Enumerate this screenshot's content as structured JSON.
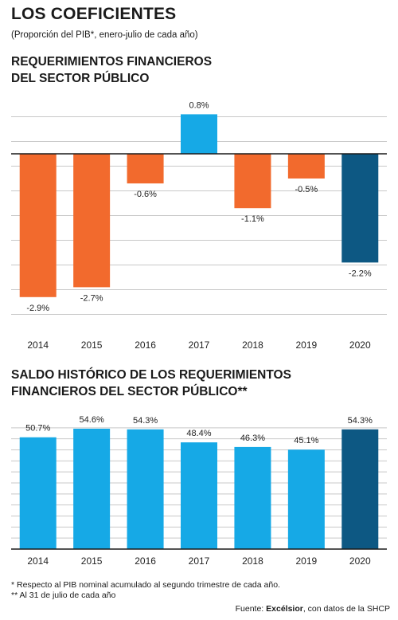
{
  "header": {
    "title": "LOS COEFICIENTES",
    "subtitle": "(Proporción del PIB*, enero-julio de cada año)"
  },
  "chart1_title": [
    "REQUERIMIENTOS FINANCIEROS",
    "DEL SECTOR PÚBLICO"
  ],
  "chart2_title": [
    "SALDO HISTÓRICO DE LOS REQUERIMIENTOS",
    "FINANCIEROS DEL SECTOR PÚBLICO**"
  ],
  "colors": {
    "orange": "#f26a2d",
    "cyan": "#16a9e6",
    "dark_blue": "#0d5883",
    "grid": "#c8c8c8",
    "zero_line": "#1a1a1a"
  },
  "chart_data": [
    {
      "type": "bar",
      "title": "REQUERIMIENTOS FINANCIEROS DEL SECTOR PÚBLICO",
      "categories": [
        "2014",
        "2015",
        "2016",
        "2017",
        "2018",
        "2019",
        "2020"
      ],
      "values": [
        -2.9,
        -2.7,
        -0.6,
        0.8,
        -1.1,
        -0.5,
        -2.2
      ],
      "value_labels": [
        "-2.9%",
        "-2.7%",
        "-0.6%",
        "0.8%",
        "-1.1%",
        "-0.5%",
        "-2.2%"
      ],
      "bar_colors": [
        "orange",
        "orange",
        "orange",
        "cyan",
        "orange",
        "orange",
        "dark_blue"
      ],
      "ylim": [
        -3.5,
        1.0
      ],
      "grid": true
    },
    {
      "type": "bar",
      "title": "SALDO HISTÓRICO DE LOS REQUERIMIENTOS FINANCIEROS DEL SECTOR PÚBLICO**",
      "categories": [
        "2014",
        "2015",
        "2016",
        "2017",
        "2018",
        "2019",
        "2020"
      ],
      "values": [
        50.7,
        54.6,
        54.3,
        48.4,
        46.3,
        45.1,
        54.3
      ],
      "value_labels": [
        "50.7%",
        "54.6%",
        "54.3%",
        "48.4%",
        "46.3%",
        "45.1%",
        "54.3%"
      ],
      "bar_colors": [
        "cyan",
        "cyan",
        "cyan",
        "cyan",
        "cyan",
        "cyan",
        "dark_blue"
      ],
      "ylim": [
        0,
        60
      ],
      "grid": true
    }
  ],
  "footnotes": [
    "* Respecto al PIB nominal acumulado al segundo trimestre de cada año.",
    "** Al 31 de julio de cada año"
  ],
  "source": {
    "prefix": "Fuente: ",
    "brand": "Excélsior",
    "suffix": ", con datos de la SHCP"
  }
}
